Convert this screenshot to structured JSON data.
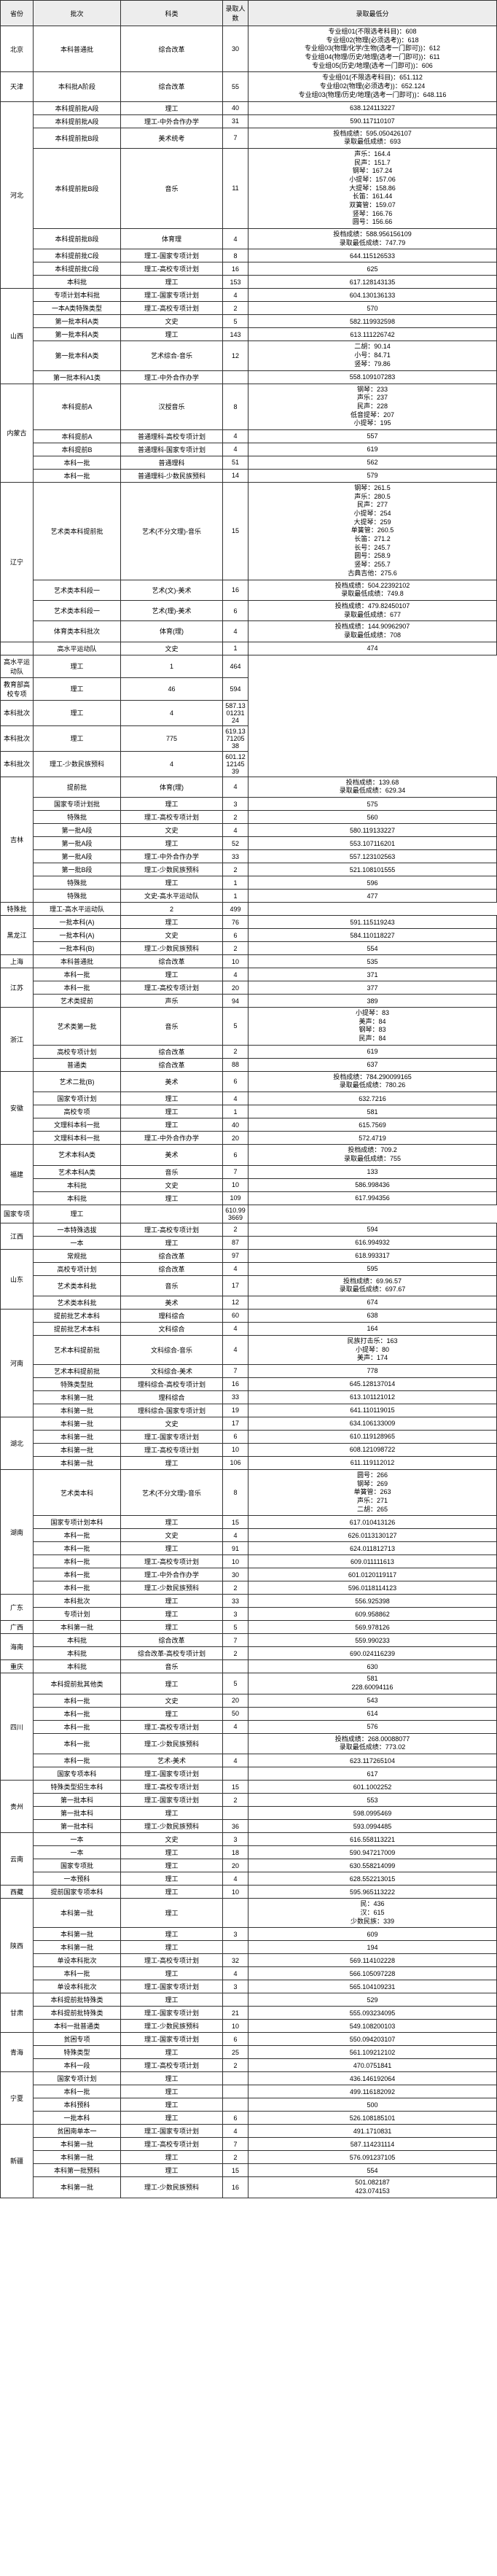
{
  "headers": {
    "province": "省份",
    "batch": "批次",
    "subject": "科类",
    "count": "录取人数",
    "score": "录取最低分"
  },
  "rows": [
    {
      "p": "北京",
      "pr": 1,
      "b": "本科普通批",
      "s": "综合改革",
      "c": "30",
      "sc": [
        "专业组01(不限选考科目)：608",
        "专业组02(物理(必须选考))：618",
        "专业组03(物理/化学/生物(选考一门即可))：612",
        "专业组04(物理/历史/地理(选考一门即可))：611",
        "专业组05(历史/地理(选考一门即可))：606"
      ]
    },
    {
      "p": "天津",
      "pr": 1,
      "b": "本科批A阶段",
      "s": "综合改革",
      "c": "55",
      "sc": [
        "专业组01(不限选考科目)：651.112",
        "专业组02(物理(必须选考))：652.124",
        "专业组03(物理/历史/地理(选考一门即可))：648.116"
      ]
    },
    {
      "p": "河北",
      "pr": 8,
      "b": "本科提前批A段",
      "s": "理工",
      "c": "40",
      "sc": [
        "638.124113227"
      ]
    },
    {
      "b": "本科提前批A段",
      "s": "理工-中外合作办学",
      "c": "31",
      "sc": [
        "590.117110107"
      ]
    },
    {
      "b": "本科提前批B段",
      "s": "美术统考",
      "c": "7",
      "sc": [
        "投档成绩：595.050426107",
        "录取最低成绩：693"
      ]
    },
    {
      "b": "本科提前批B段",
      "s": "音乐",
      "c": "11",
      "sc": [
        "声乐：164.4",
        "民声：151.7",
        "钢琴：167.24",
        "小提琴：157.06",
        "大提琴：158.86",
        "长笛：161.44",
        "双簧管：159.07",
        "竖琴：166.76",
        "圆号：156.66"
      ]
    },
    {
      "b": "本科提前批B段",
      "s": "体育理",
      "c": "4",
      "sc": [
        "投档成绩：588.956156109",
        "录取最低成绩：747.79"
      ]
    },
    {
      "b": "本科提前批C段",
      "s": "理工-国家专项计划",
      "c": "8",
      "sc": [
        "644.115126533"
      ]
    },
    {
      "b": "本科提前批C段",
      "s": "理工-高校专项计划",
      "c": "16",
      "sc": [
        "625"
      ]
    },
    {
      "b": "本科批",
      "s": "理工",
      "c": "153",
      "sc": [
        "617.128143135"
      ]
    },
    {
      "p": "山西",
      "pr": 6,
      "b": "专项计划本科批",
      "s": "理工-国家专项计划",
      "c": "4",
      "sc": [
        "604.130136133"
      ]
    },
    {
      "b": "一本A类特殊类型",
      "s": "理工-高校专项计划",
      "c": "2",
      "sc": [
        "570"
      ]
    },
    {
      "b": "第一批本科A类",
      "s": "文史",
      "c": "5",
      "sc": [
        "582.119932598"
      ]
    },
    {
      "b": "第一批本科A类",
      "s": "理工",
      "c": "143",
      "sc": [
        "613.111226742"
      ]
    },
    {
      "b": "第一批本科A类",
      "s": "艺术综合-音乐",
      "c": "12",
      "sc": [
        "二胡：90.14",
        "小号：84.71",
        "竖琴：79.86"
      ]
    },
    {
      "b": "第一批本科A1类",
      "s": "理工-中外合作办学",
      "c": "",
      "sc": [
        "558.109107283"
      ]
    },
    {
      "p": "内蒙古",
      "pr": 5,
      "b": "本科提前A",
      "s": "汉授音乐",
      "c": "8",
      "sc": [
        "钢琴：233",
        "声乐：237",
        "民声：228",
        "低音提琴：207",
        "小提琴：195"
      ]
    },
    {
      "b": "本科提前A",
      "s": "普通理科-高校专项计划",
      "c": "4",
      "sc": [
        "557"
      ]
    },
    {
      "b": "本科提前B",
      "s": "普通理科-国家专项计划",
      "c": "4",
      "sc": [
        "619"
      ]
    },
    {
      "b": "本科一批",
      "s": "普通理科",
      "c": "51",
      "sc": [
        "562"
      ]
    },
    {
      "b": "本科一批",
      "s": "普通理科-少数民族预科",
      "c": "14",
      "sc": [
        "579"
      ]
    },
    {
      "p": "辽宁",
      "pr": 4,
      "b": "艺术类本科提前批",
      "s": "艺术(不分文理)-音乐",
      "c": "15",
      "sc": [
        "钢琴：261.5",
        "声乐：280.5",
        "民声：277",
        "小提琴：254",
        "大提琴：259",
        "单簧管：260.5",
        "长笛：271.2",
        "长号：245.7",
        "圆号：258.9",
        "竖琴：255.7",
        "古典吉他：275.6"
      ]
    },
    {
      "b": "艺术类本科段一",
      "s": "艺术(文)-美术",
      "c": "16",
      "sc": [
        "投档成绩：504.22392102",
        "录取最低成绩：749.8"
      ]
    },
    {
      "b": "艺术类本科段一",
      "s": "艺术(理)-美术",
      "c": "6",
      "sc": [
        "投档成绩：479.82450107",
        "录取最低成绩：677"
      ]
    },
    {
      "b": "体育类本科批次",
      "s": "体育(理)",
      "c": "4",
      "sc": [
        "投档成绩：144.90962907",
        "录取最低成绩：708"
      ]
    },
    {
      "p": "",
      "pr": 0,
      "b": "高水平运动队",
      "s": "文史",
      "c": "1",
      "sc": [
        "474"
      ]
    },
    {
      "b": "高水平运动队",
      "s": "理工",
      "c": "1",
      "sc": [
        "464"
      ]
    },
    {
      "b": "教育部高校专项",
      "s": "理工",
      "c": "46",
      "sc": [
        "594"
      ]
    },
    {
      "b": "本科批次",
      "s": "理工",
      "c": "4",
      "sc": [
        "587.130123124"
      ]
    },
    {
      "b": "本科批次",
      "s": "理工",
      "c": "775",
      "sc": [
        "619.137120538"
      ]
    },
    {
      "b": "本科批次",
      "s": "理工-少数民族预科",
      "c": "4",
      "sc": [
        "601.121214539"
      ]
    },
    {
      "p": "吉林",
      "pr": 9,
      "b": "提前批",
      "s": "体育(理)",
      "c": "4",
      "sc": [
        "投档成绩：139.68",
        "录取最低成绩：629.34"
      ]
    },
    {
      "b": "国家专项计划批",
      "s": "理工",
      "c": "3",
      "sc": [
        "575"
      ]
    },
    {
      "b": "特殊批",
      "s": "理工-高校专项计划",
      "c": "2",
      "sc": [
        "560"
      ]
    },
    {
      "b": "第一批A段",
      "s": "文史",
      "c": "4",
      "sc": [
        "580.119133227"
      ]
    },
    {
      "b": "第一批A段",
      "s": "理工",
      "c": "52",
      "sc": [
        "553.107116201"
      ]
    },
    {
      "b": "第一批A段",
      "s": "理工-中外合作办学",
      "c": "33",
      "sc": [
        "557.123102563"
      ]
    },
    {
      "b": "第一批B段",
      "s": "理工-少数民族预科",
      "c": "2",
      "sc": [
        "521.108101555"
      ]
    },
    {
      "b": "特殊批",
      "s": "理工",
      "c": "1",
      "sc": [
        "596"
      ]
    },
    {
      "b": "特殊批",
      "s": "文史-高水平运动队",
      "c": "1",
      "sc": [
        "477"
      ]
    },
    {
      "b": "特殊批",
      "s": "理工-高水平运动队",
      "c": "2",
      "sc": [
        "499"
      ]
    },
    {
      "p": "黑龙江",
      "pr": 3,
      "b": "一批本科(A)",
      "s": "理工",
      "c": "76",
      "sc": [
        "591.115119243"
      ]
    },
    {
      "b": "一批本科(A)",
      "s": "文史",
      "c": "6",
      "sc": [
        "584.110118227"
      ]
    },
    {
      "b": "一批本科(B)",
      "s": "理工-少数民族预科",
      "c": "2",
      "sc": [
        "554"
      ]
    },
    {
      "p": "上海",
      "pr": 1,
      "b": "本科普通批",
      "s": "综合改革",
      "c": "10",
      "sc": [
        "535"
      ]
    },
    {
      "p": "江苏",
      "pr": 3,
      "b": "本科一批",
      "s": "理工",
      "c": "4",
      "sc": [
        "371"
      ]
    },
    {
      "b": "本科一批",
      "s": "理工-高校专项计划",
      "c": "20",
      "sc": [
        "377"
      ]
    },
    {
      "b": "艺术类提前",
      "s": "声乐",
      "c": "94",
      "sc": [
        "389"
      ]
    },
    {
      "p": "浙江",
      "pr": 3,
      "b": "艺术类第一批",
      "s": "音乐",
      "c": "5",
      "sc": [
        "小提琴：83",
        "美声：84",
        "钢琴：83",
        "民声：84"
      ]
    },
    {
      "b": "高校专项计划",
      "s": "综合改革",
      "c": "2",
      "sc": [
        "619"
      ]
    },
    {
      "b": "普通类",
      "s": "综合改革",
      "c": "88",
      "sc": [
        "637"
      ]
    },
    {
      "p": "安徽",
      "pr": 5,
      "b": "艺术二批(B)",
      "s": "美术",
      "c": "6",
      "sc": [
        "投档成绩：784.290099165",
        "录取最低成绩：780.26"
      ]
    },
    {
      "b": "国家专项计划",
      "s": "理工",
      "c": "4",
      "sc": [
        "632.7216"
      ]
    },
    {
      "b": "高校专项",
      "s": "理工",
      "c": "1",
      "sc": [
        "581"
      ]
    },
    {
      "b": "文理科本科一批",
      "s": "理工",
      "c": "40",
      "sc": [
        "615.7569"
      ]
    },
    {
      "b": "文理科本科一批",
      "s": "理工-中外合作办学",
      "c": "20",
      "sc": [
        "572.4719"
      ]
    },
    {
      "p": "福建",
      "pr": 4,
      "b": "艺术本科A类",
      "s": "美术",
      "c": "6",
      "sc": [
        "投档成绩：709.2",
        "录取最低成绩：755"
      ]
    },
    {
      "b": "艺术本科A类",
      "s": "音乐",
      "c": "7",
      "sc": [
        "133"
      ]
    },
    {
      "b": "本科批",
      "s": "文史",
      "c": "10",
      "sc": [
        "586.998436"
      ]
    },
    {
      "b": "本科批",
      "s": "理工",
      "c": "109",
      "sc": [
        "617.994356"
      ]
    },
    {
      "b": "国家专项",
      "s": "理工",
      "c": "",
      "sc": [
        "610.993669"
      ]
    },
    {
      "p": "江西",
      "pr": 2,
      "b": "一本特殊选拔",
      "s": "理工-高校专项计划",
      "c": "2",
      "sc": [
        "594"
      ]
    },
    {
      "b": "一本",
      "s": "理工",
      "c": "87",
      "sc": [
        "616.994932"
      ]
    },
    {
      "p": "山东",
      "pr": 4,
      "b": "常规批",
      "s": "综合改革",
      "c": "97",
      "sc": [
        "618.993317"
      ]
    },
    {
      "b": "高校专项计划",
      "s": "综合改革",
      "c": "4",
      "sc": [
        "595"
      ]
    },
    {
      "b": "艺术类本科批",
      "s": "音乐",
      "c": "17",
      "sc": [
        "投档成绩：69.96.57",
        "录取最低成绩：697.67"
      ]
    },
    {
      "b": "艺术类本科批",
      "s": "美术",
      "c": "12",
      "sc": [
        "674"
      ]
    },
    {
      "p": "河南",
      "pr": 7,
      "b": "提前批艺术本科",
      "s": "理科综合",
      "c": "60",
      "sc": [
        "638"
      ]
    },
    {
      "b": "提前批艺术本科",
      "s": "文科综合",
      "c": "4",
      "sc": [
        "164"
      ]
    },
    {
      "b": "艺术本科提前批",
      "s": "文科综合-音乐",
      "c": "4",
      "sc": [
        "民族打击乐：163",
        "小提琴：80",
        "美声：174"
      ]
    },
    {
      "b": "艺术本科提前批",
      "s": "文科综合-美术",
      "c": "7",
      "sc": [
        "778"
      ]
    },
    {
      "b": "特殊类型批",
      "s": "理科综合-高校专项计划",
      "c": "16",
      "sc": [
        "645.128137014"
      ]
    },
    {
      "b": "本科第一批",
      "s": "理科综合",
      "c": "33",
      "sc": [
        "613.101121012"
      ]
    },
    {
      "b": "本科第一批",
      "s": "理科综合-国家专项计划",
      "c": "19",
      "sc": [
        "641.110119015"
      ]
    },
    {
      "p": "湖北",
      "pr": 4,
      "b": "本科第一批",
      "s": "文史",
      "c": "17",
      "sc": [
        "634.106133009"
      ]
    },
    {
      "b": "本科第一批",
      "s": "理工-国家专项计划",
      "c": "6",
      "sc": [
        "610.119128965"
      ]
    },
    {
      "b": "本科第一批",
      "s": "理工-高校专项计划",
      "c": "10",
      "sc": [
        "608.121098722"
      ]
    },
    {
      "b": "本科第一批",
      "s": "理工",
      "c": "106",
      "sc": [
        "611.119112012"
      ]
    },
    {
      "p": "湖南",
      "pr": 7,
      "b": "艺术类本科",
      "s": "艺术(不分文理)-音乐",
      "c": "8",
      "sc": [
        "圆号：266",
        "钢琴：269",
        "单簧管：263",
        "声乐：271",
        "二胡：265"
      ]
    },
    {
      "b": "国家专项计划本科",
      "s": "理工",
      "c": "15",
      "sc": [
        "617.010413126"
      ]
    },
    {
      "b": "本科一批",
      "s": "文史",
      "c": "4",
      "sc": [
        "626.0113130127"
      ]
    },
    {
      "b": "本科一批",
      "s": "理工",
      "c": "91",
      "sc": [
        "624.011812713"
      ]
    },
    {
      "b": "本科一批",
      "s": "理工-高校专项计划",
      "c": "10",
      "sc": [
        "609.011111613"
      ]
    },
    {
      "b": "本科一批",
      "s": "理工-中外合作办学",
      "c": "30",
      "sc": [
        "601.0120119117"
      ]
    },
    {
      "b": "本科一批",
      "s": "理工-少数民族预科",
      "c": "2",
      "sc": [
        "596.0118114123"
      ]
    },
    {
      "p": "广东",
      "pr": 2,
      "b": "本科批次",
      "s": "理工",
      "c": "33",
      "sc": [
        "556.925398"
      ]
    },
    {
      "b": "专项计划",
      "s": "理工",
      "c": "3",
      "sc": [
        "609.958862"
      ]
    },
    {
      "p": "广西",
      "pr": 1,
      "b": "本科第一批",
      "s": "理工",
      "c": "5",
      "sc": [
        "569.978126"
      ]
    },
    {
      "p": "海南",
      "pr": 2,
      "b": "本科批",
      "s": "综合改革",
      "c": "7",
      "sc": [
        "559.990233"
      ]
    },
    {
      "b": "本科批",
      "s": "综合改革-高校专项计划",
      "c": "2",
      "sc": [
        "690.024116239"
      ]
    },
    {
      "p": "重庆",
      "pr": 1,
      "b": "本科批",
      "s": "音乐",
      "c": "",
      "sc": [
        "630"
      ]
    },
    {
      "p": "四川",
      "pr": 7,
      "b": "本科提前批其他类",
      "s": "理工",
      "c": "5",
      "sc": [
        "581",
        "228.60094116"
      ]
    },
    {
      "b": "本科一批",
      "s": "文史",
      "c": "20",
      "sc": [
        "543"
      ]
    },
    {
      "b": "本科一批",
      "s": "理工",
      "c": "50",
      "sc": [
        "614"
      ]
    },
    {
      "b": "本科一批",
      "s": "理工-高校专项计划",
      "c": "4",
      "sc": [
        "576"
      ]
    },
    {
      "b": "本科一批",
      "s": "理工-少数民族预科",
      "c": "",
      "sc": [
        "投档成绩：268.00088077",
        "录取最低成绩：773.02"
      ]
    },
    {
      "b": "本科一批",
      "s": "艺术-美术",
      "c": "4",
      "sc": [
        "623.117265104"
      ]
    },
    {
      "b": "国家专项本科",
      "s": "理工-国家专项计划",
      "c": "",
      "sc": [
        "617"
      ]
    },
    {
      "p": "贵州",
      "pr": 4,
      "b": "特殊类型招生本科",
      "s": "理工-高校专项计划",
      "c": "15",
      "sc": [
        "601.1002252"
      ]
    },
    {
      "b": "第一批本科",
      "s": "理工-国家专项计划",
      "c": "2",
      "sc": [
        "553"
      ]
    },
    {
      "b": "第一批本科",
      "s": "理工",
      "c": "",
      "sc": [
        "598.0995469"
      ]
    },
    {
      "b": "第一批本科",
      "s": "理工-少数民族预科",
      "c": "36",
      "sc": [
        "593.0994485"
      ]
    },
    {
      "p": "云南",
      "pr": 4,
      "b": "一本",
      "s": "文史",
      "c": "3",
      "sc": [
        "616.558113221"
      ]
    },
    {
      "b": "一本",
      "s": "理工",
      "c": "18",
      "sc": [
        "590.947217009"
      ]
    },
    {
      "b": "国家专项批",
      "s": "理工",
      "c": "20",
      "sc": [
        "630.558214099"
      ]
    },
    {
      "b": "一本预科",
      "s": "理工",
      "c": "4",
      "sc": [
        "628.552213015"
      ]
    },
    {
      "p": "西藏",
      "pr": 1,
      "b": "提前国家专项本科",
      "s": "理工",
      "c": "10",
      "sc": [
        "595.965113222"
      ]
    },
    {
      "p": "陕西",
      "pr": 6,
      "b": "本科第一批",
      "s": "理工",
      "c": "",
      "sc": [
        "民：436",
        "汉：615",
        "少数民族：339"
      ]
    },
    {
      "b": "本科第一批",
      "s": "理工",
      "c": "3",
      "sc": [
        "609"
      ]
    },
    {
      "b": "本科第一批",
      "s": "理工",
      "c": "",
      "sc": [
        "194"
      ]
    },
    {
      "b": "单设本科批次",
      "s": "理工-高校专项计划",
      "c": "32",
      "sc": [
        "569.114102228"
      ]
    },
    {
      "b": "本科一批",
      "s": "理工",
      "c": "4",
      "sc": [
        "566.105097228"
      ]
    },
    {
      "b": "单设本科批次",
      "s": "理工-国家专项计划",
      "c": "3",
      "sc": [
        "565.104109231"
      ]
    },
    {
      "p": "甘肃",
      "pr": 3,
      "b": "本科提前批特殊类",
      "s": "理工",
      "c": "",
      "sc": [
        "529"
      ]
    },
    {
      "b": "本科提前批特殊类",
      "s": "理工-国家专项计划",
      "c": "21",
      "sc": [
        "555.093234095"
      ]
    },
    {
      "b": "本科一批普通类",
      "s": "理工-少数民族预科",
      "c": "10",
      "sc": [
        "549.108200103"
      ]
    },
    {
      "p": "青海",
      "pr": 3,
      "b": "贫困专项",
      "s": "理工-国家专项计划",
      "c": "6",
      "sc": [
        "550.094203107"
      ]
    },
    {
      "b": "特殊类型",
      "s": "理工",
      "c": "25",
      "sc": [
        "561.109212102"
      ]
    },
    {
      "b": "本科一段",
      "s": "理工-高校专项计划",
      "c": "2",
      "sc": [
        "470.0751841"
      ]
    },
    {
      "p": "宁夏",
      "pr": 4,
      "b": "国家专项计划",
      "s": "理工",
      "c": "",
      "sc": [
        "436.146192064"
      ]
    },
    {
      "b": "本科一批",
      "s": "理工",
      "c": "",
      "sc": [
        "499.116182092"
      ]
    },
    {
      "b": "本科预科",
      "s": "理工",
      "c": "",
      "sc": [
        "500"
      ]
    },
    {
      "b": "一批本科",
      "s": "理工",
      "c": "6",
      "sc": [
        "526.108185101"
      ]
    },
    {
      "p": "新疆",
      "pr": 5,
      "b": "贫困南单本一",
      "s": "理工-国家专项计划",
      "c": "4",
      "sc": [
        "491.1710831"
      ]
    },
    {
      "b": "本科第一批",
      "s": "理工-高校专项计划",
      "c": "7",
      "sc": [
        "587.114231114"
      ]
    },
    {
      "b": "本科第一批",
      "s": "理工",
      "c": "2",
      "sc": [
        "576.091237105"
      ]
    },
    {
      "b": "本科第一批预科",
      "s": "理工",
      "c": "15",
      "sc": [
        "554"
      ]
    },
    {
      "b": "本科第一批",
      "s": "理工-少数民族预科",
      "c": "16",
      "sc": [
        "501.082187",
        "423.074153"
      ]
    }
  ]
}
